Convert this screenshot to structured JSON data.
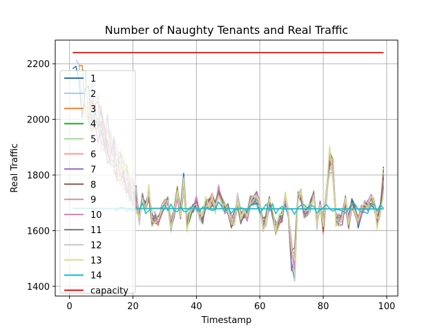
{
  "chart_data": {
    "type": "line",
    "title": "Number of Naughty Tenants and Real Traffic",
    "xlabel": "Timestamp",
    "ylabel": "Real Traffic",
    "xlim": [
      -4.5,
      103.5
    ],
    "ylim": [
      1365,
      2285
    ],
    "xticks": [
      0,
      20,
      40,
      60,
      80,
      100
    ],
    "yticks": [
      1400,
      1600,
      1800,
      2000,
      2200
    ],
    "grid": true,
    "legend_position": "upper-left",
    "capacity": {
      "name": "capacity",
      "x": [
        1,
        99
      ],
      "y": [
        2240,
        2240
      ],
      "color": "#ff0000"
    },
    "baseline": {
      "x_start": 1,
      "x_end": 99,
      "y_start": 1680,
      "y_end": 1678
    },
    "series": [
      {
        "name": "1",
        "color": "#1f77b4",
        "start": 1,
        "peak": 2160,
        "last": 1830
      },
      {
        "name": "2",
        "color": "#aec7e8",
        "start": 2,
        "peak": 2140,
        "last": 1825
      },
      {
        "name": "3",
        "color": "#ff7f0e",
        "start": 3,
        "peak": 2120,
        "last": 1820
      },
      {
        "name": "4",
        "color": "#2ca02c",
        "start": 4,
        "peak": 2100,
        "last": 1815
      },
      {
        "name": "5",
        "color": "#98df8a",
        "start": 5,
        "peak": 2080,
        "last": 1810
      },
      {
        "name": "6",
        "color": "#ff9896",
        "start": 6,
        "peak": 2060,
        "last": 1805
      },
      {
        "name": "7",
        "color": "#9467bd",
        "start": 7,
        "peak": 2040,
        "last": 1800
      },
      {
        "name": "8",
        "color": "#8c564b",
        "start": 8,
        "peak": 2010,
        "last": 1790
      },
      {
        "name": "9",
        "color": "#c49c94",
        "start": 9,
        "peak": 1990,
        "last": 1780
      },
      {
        "name": "10",
        "color": "#e377c2",
        "start": 10,
        "peak": 1970,
        "last": 1770
      },
      {
        "name": "11",
        "color": "#7f7f7f",
        "start": 11,
        "peak": 1950,
        "last": 1760
      },
      {
        "name": "12",
        "color": "#c7c7c7",
        "start": 12,
        "peak": 1930,
        "last": 1740
      },
      {
        "name": "13",
        "color": "#dbdb8d",
        "start": 13,
        "peak": 1900,
        "last": 1720
      },
      {
        "name": "14",
        "color": "#17becf",
        "start": 14,
        "peak": 1700,
        "last": 1680
      }
    ]
  }
}
